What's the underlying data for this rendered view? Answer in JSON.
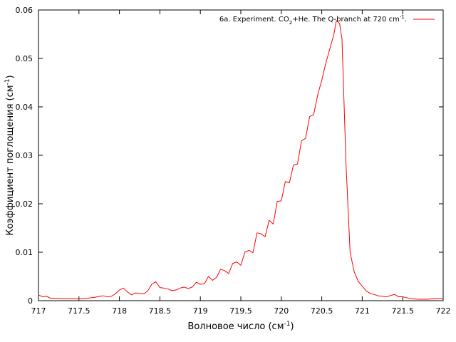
{
  "chart_data": {
    "type": "line",
    "xlabel": {
      "text": "Волновое число (см",
      "sup": "-1",
      "tail": ")"
    },
    "ylabel": {
      "text": "Коэффициент поглощения (см",
      "sup": "-1",
      "tail": ")"
    },
    "xlim": [
      717,
      722
    ],
    "ylim": [
      0,
      0.06
    ],
    "xticks": [
      "717",
      "717.5",
      "718",
      "718.5",
      "719",
      "719.5",
      "720",
      "720.5",
      "721",
      "721.5",
      "722"
    ],
    "yticks": [
      "0",
      "0.01",
      "0.02",
      "0.03",
      "0.04",
      "0.05",
      "0.06"
    ],
    "grid": false,
    "legend_position": "top-right",
    "legend": {
      "parts": [
        {
          "t": "6a. Experiment. CO"
        },
        {
          "t": "2",
          "sub": true
        },
        {
          "t": "+He. The Q-branch at 720 cm"
        },
        {
          "t": "-1",
          "sup": true
        },
        {
          "t": "."
        }
      ]
    },
    "series": [
      {
        "color": "#ff0000",
        "x": [
          717.0,
          717.05,
          717.1,
          717.15,
          717.2,
          717.3,
          717.4,
          717.5,
          717.6,
          717.7,
          717.75,
          717.8,
          717.85,
          717.9,
          717.95,
          718.0,
          718.05,
          718.1,
          718.15,
          718.2,
          718.25,
          718.3,
          718.35,
          718.4,
          718.45,
          718.5,
          718.55,
          718.6,
          718.65,
          718.7,
          718.75,
          718.8,
          718.85,
          718.9,
          718.95,
          719.0,
          719.05,
          719.1,
          719.15,
          719.2,
          719.25,
          719.3,
          719.35,
          719.4,
          719.45,
          719.5,
          719.55,
          719.6,
          719.65,
          719.7,
          719.75,
          719.8,
          719.85,
          719.9,
          719.95,
          720.0,
          720.05,
          720.1,
          720.15,
          720.2,
          720.25,
          720.3,
          720.35,
          720.4,
          720.45,
          720.5,
          720.55,
          720.6,
          720.65,
          720.68,
          720.72,
          720.75,
          720.8,
          720.85,
          720.9,
          720.95,
          721.0,
          721.05,
          721.1,
          721.2,
          721.3,
          721.4,
          721.45,
          721.5,
          721.6,
          721.7,
          721.8,
          721.9,
          722.0
        ],
        "y": [
          0.0012,
          0.0008,
          0.0009,
          0.0005,
          0.0005,
          0.0004,
          0.0004,
          0.0004,
          0.0005,
          0.0007,
          0.0009,
          0.001,
          0.0008,
          0.0009,
          0.0014,
          0.0022,
          0.0026,
          0.0018,
          0.0012,
          0.0016,
          0.0015,
          0.0014,
          0.002,
          0.0034,
          0.0039,
          0.0027,
          0.0026,
          0.0024,
          0.0021,
          0.0022,
          0.0026,
          0.0028,
          0.0025,
          0.0028,
          0.0038,
          0.0034,
          0.0035,
          0.005,
          0.0042,
          0.0048,
          0.0065,
          0.0062,
          0.0056,
          0.0077,
          0.008,
          0.0073,
          0.01,
          0.0104,
          0.0099,
          0.014,
          0.0138,
          0.0132,
          0.0166,
          0.0158,
          0.0205,
          0.0206,
          0.0246,
          0.0243,
          0.028,
          0.0282,
          0.033,
          0.0335,
          0.038,
          0.0384,
          0.0425,
          0.0455,
          0.049,
          0.052,
          0.055,
          0.0578,
          0.0572,
          0.054,
          0.028,
          0.01,
          0.006,
          0.004,
          0.003,
          0.002,
          0.0015,
          0.001,
          0.0008,
          0.0013,
          0.0008,
          0.0008,
          0.0004,
          0.0003,
          0.0003,
          0.0004,
          0.0005
        ]
      }
    ]
  }
}
